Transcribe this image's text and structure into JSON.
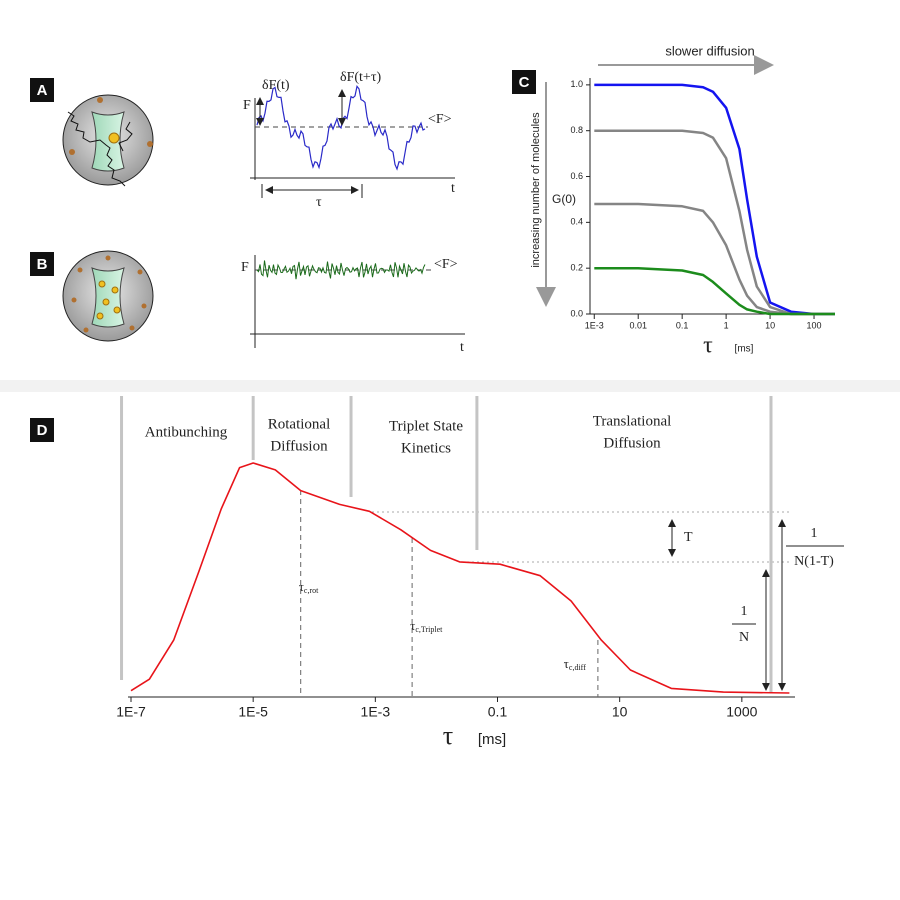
{
  "panel_a": {
    "label": "A",
    "dF_t": "δF(t)",
    "dF_t_tau": "δF(t+τ)",
    "y_label": "F",
    "mean_label": "<F>",
    "x_label": "t",
    "lag_label": "τ"
  },
  "panel_b": {
    "label": "B",
    "y_label": "F",
    "mean_label": "<F>",
    "x_label": "t"
  },
  "chart_data": [
    {
      "type": "line",
      "panel": "C",
      "x_label": "τ",
      "x_unit": "[ms]",
      "y_label": "G(0)",
      "top_annotation": "slower diffusion",
      "side_annotation": "increasing number of molecules",
      "log_x": true,
      "xlim": [
        0.0008,
        300
      ],
      "ylim": [
        0,
        1.03
      ],
      "xticks": [
        {
          "value": 0.001,
          "label": "1E-3"
        },
        0.01,
        0.1,
        1,
        10,
        100
      ],
      "yticks": [
        {
          "value": 0,
          "label": "0.0"
        },
        0.2,
        0.4,
        0.6,
        0.8,
        {
          "value": 1,
          "label": "1.0"
        }
      ],
      "x": [
        0.001,
        0.01,
        0.1,
        0.3,
        0.5,
        1,
        2,
        3,
        5,
        10,
        30,
        100,
        300
      ],
      "series": [
        {
          "color": "#1414f0",
          "values": [
            1,
            1,
            1,
            0.99,
            0.97,
            0.9,
            0.72,
            0.5,
            0.25,
            0.05,
            0.01,
            0,
            0
          ]
        },
        {
          "color": "#858585",
          "values": [
            0.8,
            0.8,
            0.8,
            0.79,
            0.77,
            0.68,
            0.45,
            0.28,
            0.12,
            0.03,
            0,
            0,
            0
          ]
        },
        {
          "color": "#858585",
          "values": [
            0.48,
            0.48,
            0.47,
            0.45,
            0.4,
            0.3,
            0.15,
            0.08,
            0.03,
            0.01,
            0,
            0,
            0
          ]
        },
        {
          "color": "#1c8c1c",
          "values": [
            0.2,
            0.2,
            0.19,
            0.17,
            0.14,
            0.09,
            0.04,
            0.02,
            0.01,
            0,
            0,
            0,
            0
          ]
        }
      ]
    },
    {
      "type": "line",
      "panel": "D",
      "x_label": "τ",
      "x_unit": "[ms]",
      "log_x": true,
      "xlim": [
        1e-07,
        8000
      ],
      "ylim": [
        0,
        1
      ],
      "xticks": [
        {
          "value": 1e-07,
          "label": "1E-7"
        },
        {
          "value": 1e-05,
          "label": "1E-5"
        },
        {
          "value": 0.001,
          "label": "1E-3"
        },
        0.1,
        10,
        1000
      ],
      "x": [
        1e-07,
        2e-07,
        5e-07,
        1.3e-06,
        3e-06,
        6e-06,
        1e-05,
        2.3e-05,
        6e-05,
        0.00026,
        0.0008,
        0.0026,
        0.008,
        0.024,
        0.11,
        0.5,
        1.6,
        5,
        15,
        70,
        500,
        6000
      ],
      "series": [
        {
          "color": "#e8141a",
          "values": [
            0.01,
            0.06,
            0.23,
            0.53,
            0.8,
            0.98,
            1,
            0.97,
            0.88,
            0.82,
            0.79,
            0.71,
            0.62,
            0.57,
            0.56,
            0.51,
            0.4,
            0.23,
            0.1,
            0.02,
            0.004,
            0
          ]
        }
      ],
      "separators": [
        7e-08,
        1e-05,
        0.0004,
        0.046,
        3000
      ],
      "regions": [
        [
          "Antibunching"
        ],
        [
          "Rotational",
          "Diffusion"
        ],
        [
          "Triplet State",
          "Kinetics"
        ],
        [
          "Translational",
          "Diffusion"
        ]
      ],
      "markers": [
        {
          "symbol": "τ",
          "subscript": "c,rot",
          "x": 6e-05
        },
        {
          "symbol": "τ",
          "subscript": "c,Triplet",
          "x": 0.004
        },
        {
          "symbol": "τ",
          "subscript": "c,diff",
          "x": 4.4
        }
      ],
      "annotations": {
        "triplet": "T",
        "n_num": "1",
        "n_den": "N",
        "nt_num": "1",
        "nt_den": "N(1-T)"
      }
    }
  ]
}
